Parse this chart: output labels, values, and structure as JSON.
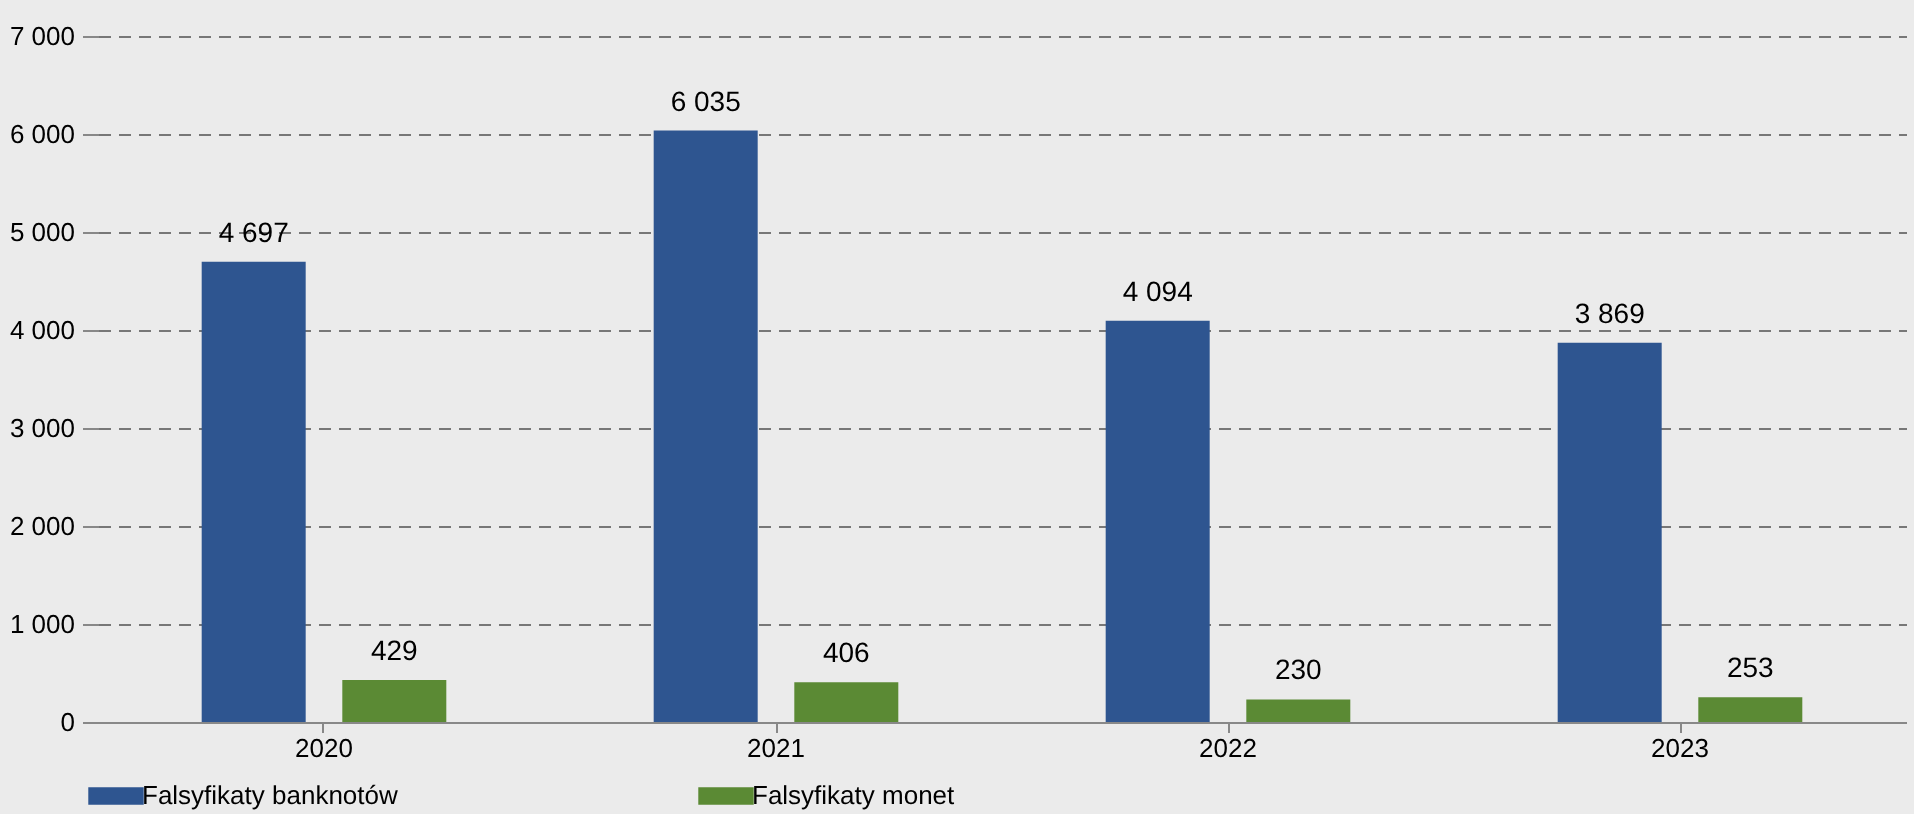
{
  "chart_data": {
    "type": "bar",
    "categories": [
      "2020",
      "2021",
      "2022",
      "2023"
    ],
    "series": [
      {
        "name": "Falsyfikaty banknotów",
        "color": "#2e5590",
        "values": [
          4697,
          6035,
          4094,
          3869
        ],
        "value_labels": [
          "4 697",
          "6 035",
          "4 094",
          "3 869"
        ]
      },
      {
        "name": "Falsyfikaty monet",
        "color": "#5b8a34",
        "values": [
          429,
          406,
          230,
          253
        ],
        "value_labels": [
          "429",
          "406",
          "230",
          "253"
        ]
      }
    ],
    "ylim": [
      0,
      7000
    ],
    "yticks": [
      0,
      {
        "value": 1000,
        "label": "1 000"
      },
      {
        "value": 2000,
        "label": "2 000"
      },
      {
        "value": 3000,
        "label": "3 000"
      },
      {
        "value": 4000,
        "label": "4 000"
      },
      {
        "value": 5000,
        "label": "5 000"
      },
      {
        "value": 6000,
        "label": "6 000"
      },
      {
        "value": 7000,
        "label": "7 000"
      }
    ],
    "grid": "y",
    "legend": "bottom left"
  }
}
